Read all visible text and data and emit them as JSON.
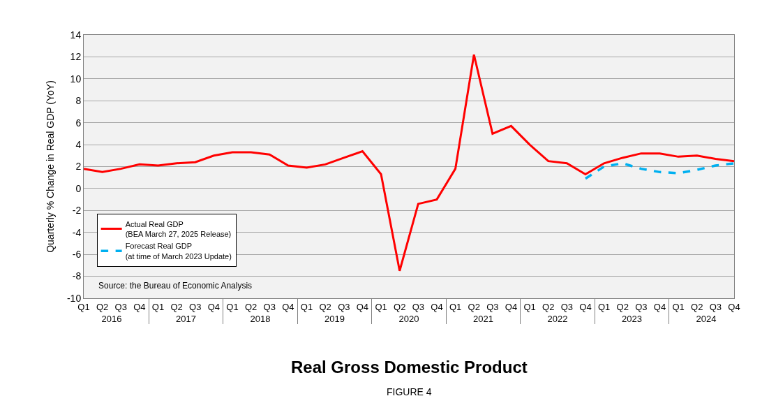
{
  "chart_data": {
    "type": "line",
    "title": "Real Gross Domestic Product",
    "subtitle": "FIGURE 4",
    "ylabel": "Quarterly % Change in Real GDP (YoY)",
    "categories": [
      "Q1",
      "Q2",
      "Q3",
      "Q4",
      "Q1",
      "Q2",
      "Q3",
      "Q4",
      "Q1",
      "Q2",
      "Q3",
      "Q4",
      "Q1",
      "Q2",
      "Q3",
      "Q4",
      "Q1",
      "Q2",
      "Q3",
      "Q4",
      "Q1",
      "Q2",
      "Q3",
      "Q4",
      "Q1",
      "Q2",
      "Q3",
      "Q4",
      "Q1",
      "Q2",
      "Q3",
      "Q4",
      "Q1",
      "Q2",
      "Q3",
      "Q4"
    ],
    "annotations": [
      "Source: the Bureau of Economic Analysis",
      "2016",
      "2017",
      "2018",
      "2019",
      "2020",
      "2021",
      "2022",
      "2023",
      "2024"
    ],
    "series": [
      {
        "name": "Actual Real GDP\n(BEA March 27, 2025 Release)",
        "color": "#ff0000",
        "line_style": "solid",
        "values": [
          1.8,
          1.5,
          1.8,
          2.2,
          2.1,
          2.3,
          2.4,
          3.0,
          3.3,
          3.3,
          3.1,
          2.1,
          1.9,
          2.2,
          2.8,
          3.4,
          1.3,
          -7.5,
          -1.4,
          -1.0,
          1.8,
          12.2,
          5.0,
          5.7,
          4.0,
          2.5,
          2.3,
          1.3,
          2.3,
          2.8,
          3.2,
          3.2,
          2.9,
          3.0,
          2.7,
          2.5
        ]
      },
      {
        "name": "Forecast Real GDP\n(at time of March 2023 Update)",
        "color": "#00b0f0",
        "line_style": "dashed",
        "values": [
          null,
          null,
          null,
          null,
          null,
          null,
          null,
          null,
          null,
          null,
          null,
          null,
          null,
          null,
          null,
          null,
          null,
          null,
          null,
          null,
          null,
          null,
          null,
          null,
          null,
          null,
          null,
          0.9,
          2.0,
          2.3,
          1.8,
          1.5,
          1.4,
          1.7,
          2.1,
          2.3
        ]
      }
    ],
    "ylim": [
      -10,
      14
    ],
    "yticks": [
      -10,
      -8,
      -6,
      -4,
      -2,
      0,
      2,
      4,
      6,
      8,
      10,
      12,
      14
    ],
    "grid": "y",
    "legend": "bottom left",
    "marker": "none"
  }
}
